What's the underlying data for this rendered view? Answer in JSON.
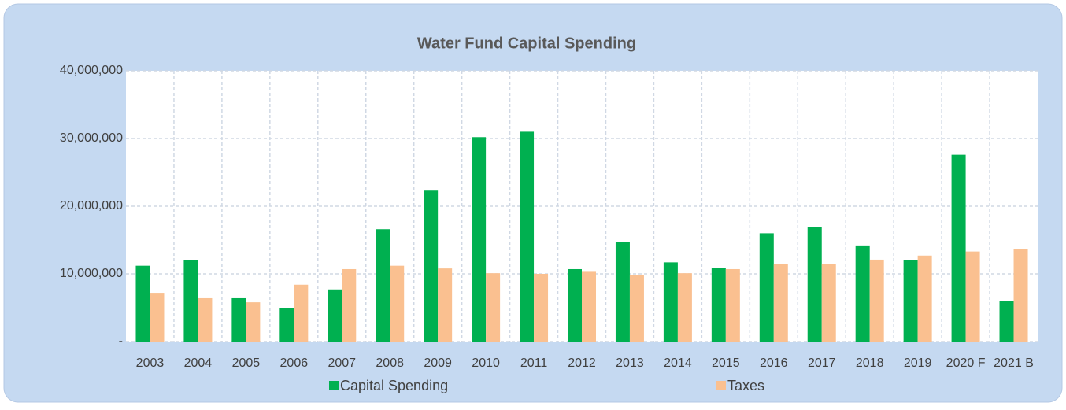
{
  "chart_data": {
    "type": "bar",
    "title": "Water Fund Capital Spending",
    "categories": [
      "2003",
      "2004",
      "2005",
      "2006",
      "2007",
      "2008",
      "2009",
      "2010",
      "2011",
      "2012",
      "2013",
      "2014",
      "2015",
      "2016",
      "2017",
      "2018",
      "2019",
      "2020 F",
      "2021 B"
    ],
    "series": [
      {
        "name": "Capital Spending",
        "color": "#00b050",
        "values": [
          11200000,
          12000000,
          6400000,
          4900000,
          7700000,
          16600000,
          22300000,
          30200000,
          31000000,
          10700000,
          14700000,
          11700000,
          10900000,
          16000000,
          16900000,
          14200000,
          12000000,
          27600000,
          6000000
        ]
      },
      {
        "name": "Taxes",
        "color": "#fac090",
        "values": [
          7200000,
          6400000,
          5800000,
          8400000,
          10700000,
          11200000,
          10800000,
          10100000,
          10000000,
          10300000,
          9800000,
          10100000,
          10700000,
          11400000,
          11400000,
          12100000,
          12700000,
          13300000,
          13700000
        ]
      }
    ],
    "ylim": [
      0,
      40000000
    ],
    "yticks": [
      {
        "value": 0,
        "label": "-"
      },
      {
        "value": 10000000,
        "label": "10,000,000"
      },
      {
        "value": 20000000,
        "label": "20,000,000"
      },
      {
        "value": 30000000,
        "label": "30,000,000"
      },
      {
        "value": 40000000,
        "label": "40,000,000"
      }
    ],
    "grid": true,
    "legend": "bottom"
  }
}
